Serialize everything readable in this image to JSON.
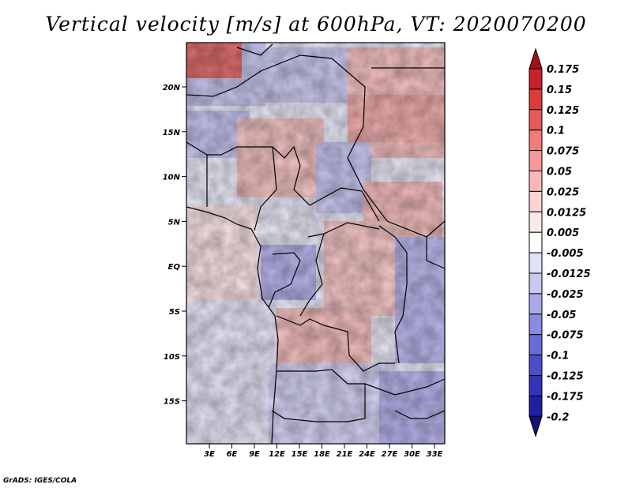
{
  "title": "Vertical velocity [m/s] at 600hPa, VT: 2020070200",
  "footer": "GrADS: IGES/COLA",
  "lat_ticks": [
    "20N",
    "15N",
    "10N",
    "5N",
    "EQ",
    "5S",
    "10S",
    "15S"
  ],
  "lon_ticks": [
    "3E",
    "6E",
    "9E",
    "12E",
    "15E",
    "18E",
    "21E",
    "24E",
    "27E",
    "30E",
    "33E"
  ],
  "colorbar": {
    "labels": [
      "0.175",
      "0.15",
      "0.125",
      "0.1",
      "0.075",
      "0.05",
      "0.025",
      "0.0125",
      "0.005",
      "-0.005",
      "-0.0125",
      "-0.025",
      "-0.05",
      "-0.075",
      "-0.1",
      "-0.125",
      "-0.175",
      "-0.2"
    ],
    "colors": [
      "#a50f15",
      "#c8202b",
      "#de3b3b",
      "#e85a5a",
      "#ef7b7b",
      "#f49a9a",
      "#f8b8b8",
      "#fbd3d3",
      "#fde8e8",
      "#ffffff",
      "#e2e2f7",
      "#c8c8f0",
      "#a9a9e8",
      "#8a8ae0",
      "#6b6bd6",
      "#4d4dc8",
      "#3333b8",
      "#1f1fa0",
      "#12127a"
    ]
  }
}
